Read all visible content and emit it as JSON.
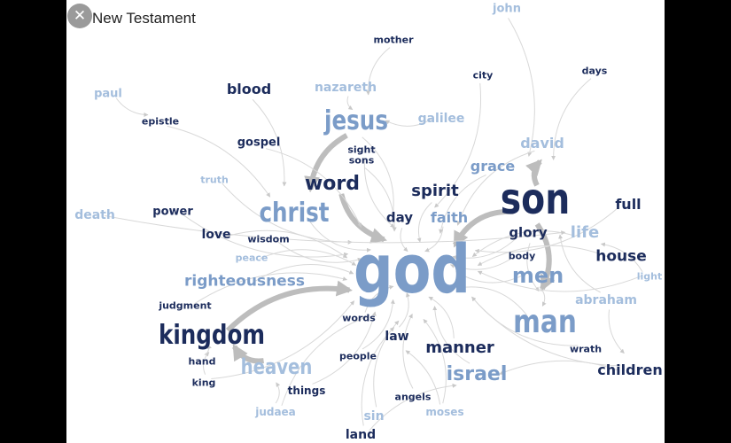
{
  "title": "New Testament",
  "colors": {
    "dark": "#1c2c5c",
    "mid": "#7b9cc8",
    "light": "#a4bedd"
  },
  "words": [
    {
      "text": "john",
      "tone": "light"
    },
    {
      "text": "mother",
      "tone": "dark"
    },
    {
      "text": "city",
      "tone": "dark"
    },
    {
      "text": "days",
      "tone": "dark"
    },
    {
      "text": "paul",
      "tone": "light"
    },
    {
      "text": "blood",
      "tone": "dark"
    },
    {
      "text": "nazareth",
      "tone": "light"
    },
    {
      "text": "epistle",
      "tone": "dark"
    },
    {
      "text": "jesus",
      "tone": "mid"
    },
    {
      "text": "galilee",
      "tone": "light"
    },
    {
      "text": "david",
      "tone": "light"
    },
    {
      "text": "gospel",
      "tone": "dark"
    },
    {
      "text": "sight",
      "tone": "dark"
    },
    {
      "text": "sons",
      "tone": "dark"
    },
    {
      "text": "grace",
      "tone": "mid"
    },
    {
      "text": "truth",
      "tone": "light"
    },
    {
      "text": "word",
      "tone": "dark"
    },
    {
      "text": "spirit",
      "tone": "dark"
    },
    {
      "text": "son",
      "tone": "dark"
    },
    {
      "text": "full",
      "tone": "dark"
    },
    {
      "text": "death",
      "tone": "light"
    },
    {
      "text": "power",
      "tone": "dark"
    },
    {
      "text": "christ",
      "tone": "mid"
    },
    {
      "text": "day",
      "tone": "dark"
    },
    {
      "text": "faith",
      "tone": "mid"
    },
    {
      "text": "love",
      "tone": "dark"
    },
    {
      "text": "wisdom",
      "tone": "dark"
    },
    {
      "text": "glory",
      "tone": "dark"
    },
    {
      "text": "life",
      "tone": "light"
    },
    {
      "text": "body",
      "tone": "dark"
    },
    {
      "text": "house",
      "tone": "dark"
    },
    {
      "text": "peace",
      "tone": "light"
    },
    {
      "text": "god",
      "tone": "mid"
    },
    {
      "text": "men",
      "tone": "mid"
    },
    {
      "text": "light",
      "tone": "light"
    },
    {
      "text": "righteousness",
      "tone": "mid"
    },
    {
      "text": "abraham",
      "tone": "light"
    },
    {
      "text": "judgment",
      "tone": "dark"
    },
    {
      "text": "words",
      "tone": "dark"
    },
    {
      "text": "man",
      "tone": "mid"
    },
    {
      "text": "kingdom",
      "tone": "dark"
    },
    {
      "text": "law",
      "tone": "dark"
    },
    {
      "text": "manner",
      "tone": "dark"
    },
    {
      "text": "wrath",
      "tone": "dark"
    },
    {
      "text": "hand",
      "tone": "dark"
    },
    {
      "text": "people",
      "tone": "dark"
    },
    {
      "text": "heaven",
      "tone": "light"
    },
    {
      "text": "israel",
      "tone": "mid"
    },
    {
      "text": "children",
      "tone": "dark"
    },
    {
      "text": "king",
      "tone": "dark"
    },
    {
      "text": "things",
      "tone": "dark"
    },
    {
      "text": "angels",
      "tone": "dark"
    },
    {
      "text": "judaea",
      "tone": "light"
    },
    {
      "text": "sin",
      "tone": "light"
    },
    {
      "text": "moses",
      "tone": "light"
    },
    {
      "text": "land",
      "tone": "dark"
    }
  ],
  "edges": [
    [
      "kingdom",
      "god",
      "bold"
    ],
    [
      "word",
      "god",
      "bold"
    ],
    [
      "son",
      "man",
      "bold"
    ],
    [
      "son",
      "god",
      "bold"
    ],
    [
      "heaven",
      "kingdom",
      "bold"
    ],
    [
      "jesus",
      "christ",
      "bold"
    ],
    [
      "son",
      "david",
      "bold"
    ],
    [
      "christ",
      "god"
    ],
    [
      "jesus",
      "god"
    ],
    [
      "spirit",
      "god"
    ],
    [
      "faith",
      "god"
    ],
    [
      "grace",
      "god"
    ],
    [
      "glory",
      "god"
    ],
    [
      "life",
      "god"
    ],
    [
      "men",
      "god"
    ],
    [
      "man",
      "god"
    ],
    [
      "righteousness",
      "god"
    ],
    [
      "power",
      "god"
    ],
    [
      "love",
      "god"
    ],
    [
      "wisdom",
      "god"
    ],
    [
      "peace",
      "god"
    ],
    [
      "truth",
      "god"
    ],
    [
      "gospel",
      "god"
    ],
    [
      "death",
      "life"
    ],
    [
      "blood",
      "christ"
    ],
    [
      "nazareth",
      "jesus"
    ],
    [
      "galilee",
      "jesus"
    ],
    [
      "mother",
      "jesus"
    ],
    [
      "city",
      "god"
    ],
    [
      "days",
      "son"
    ],
    [
      "john",
      "son"
    ],
    [
      "paul",
      "epistle"
    ],
    [
      "epistle",
      "christ"
    ],
    [
      "sight",
      "god"
    ],
    [
      "sons",
      "god"
    ],
    [
      "day",
      "god"
    ],
    [
      "body",
      "god"
    ],
    [
      "house",
      "god"
    ],
    [
      "full",
      "god"
    ],
    [
      "light",
      "life"
    ],
    [
      "abraham",
      "son"
    ],
    [
      "children",
      "israel"
    ],
    [
      "israel",
      "god"
    ],
    [
      "manner",
      "god"
    ],
    [
      "wrath",
      "god"
    ],
    [
      "law",
      "god"
    ],
    [
      "words",
      "god"
    ],
    [
      "people",
      "god"
    ],
    [
      "angels",
      "god"
    ],
    [
      "things",
      "god"
    ],
    [
      "sin",
      "god"
    ],
    [
      "moses",
      "law"
    ],
    [
      "land",
      "israel"
    ],
    [
      "judaea",
      "heaven"
    ],
    [
      "king",
      "kingdom"
    ],
    [
      "hand",
      "kingdom"
    ],
    [
      "judgment",
      "god"
    ],
    [
      "david",
      "god"
    ],
    [
      "men",
      "man"
    ],
    [
      "glory",
      "man"
    ],
    [
      "children",
      "god"
    ],
    [
      "abraham",
      "children"
    ],
    [
      "light",
      "god"
    ],
    [
      "king",
      "god"
    ],
    [
      "judaea",
      "god"
    ],
    [
      "moses",
      "god"
    ],
    [
      "land",
      "god"
    ]
  ]
}
